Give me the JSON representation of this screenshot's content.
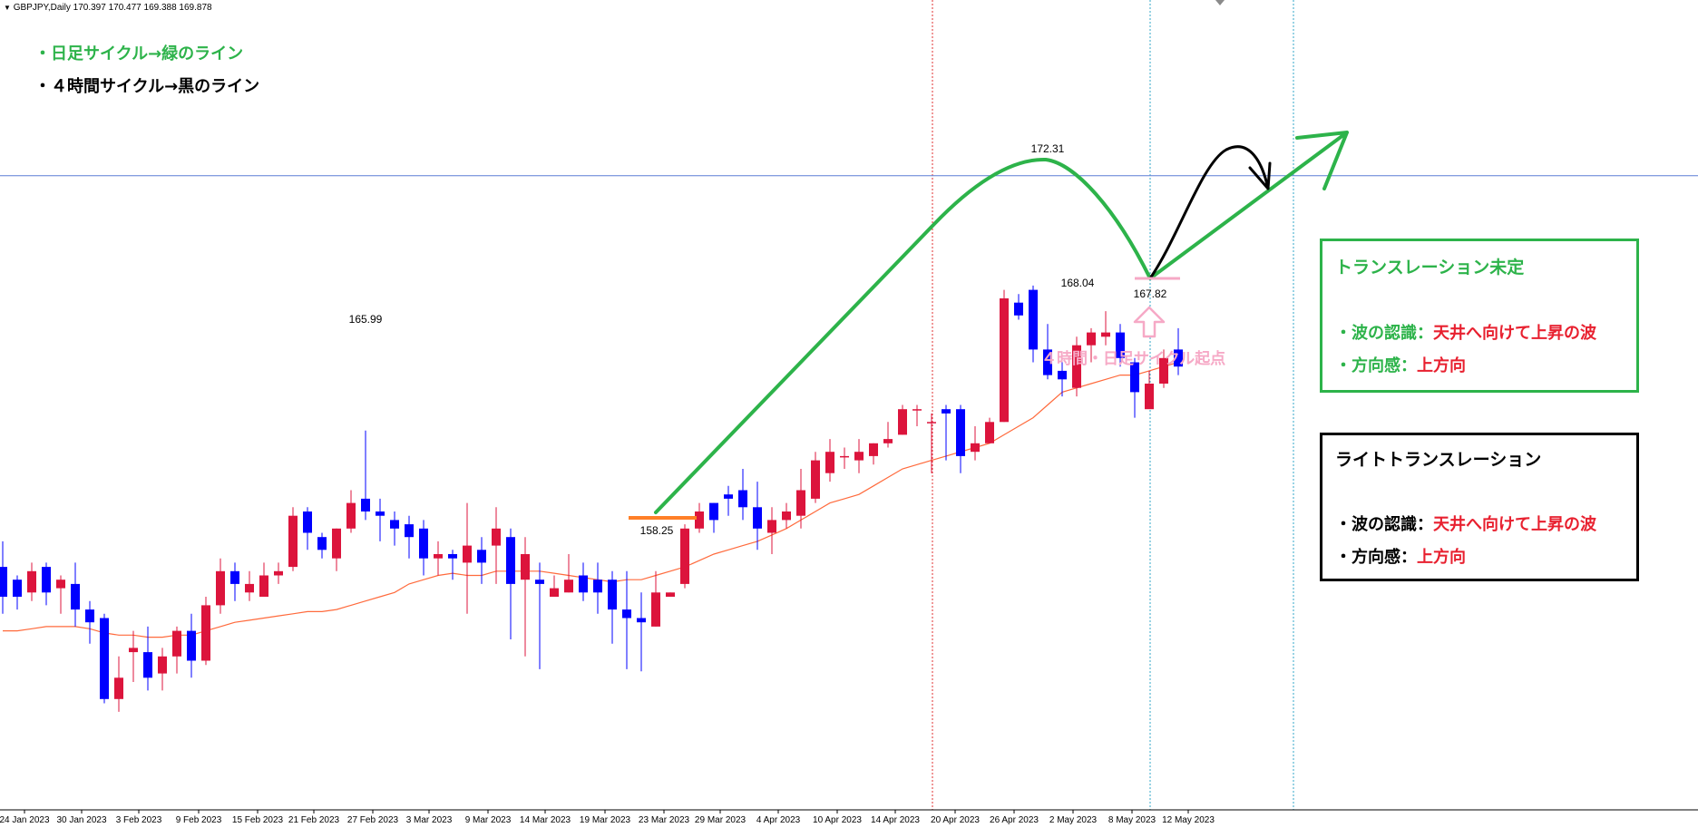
{
  "header": {
    "symbol_info": "GBPJPY,Daily  170.397 170.477 169.388 169.878"
  },
  "notes": {
    "line1": "・日足サイクル→緑のライン",
    "line2": "・４時間サイクル→黒のライン"
  },
  "green_box": {
    "title": "トランスレーション未定",
    "line1_label": "・波の認識：",
    "line1_value": "天井へ向けて上昇の波",
    "line2_label": "・方向感：",
    "line2_value": "上方向"
  },
  "black_box": {
    "title": "ライトトランスレーション",
    "line1_label": "・波の認識：",
    "line1_value": "天井へ向けて上昇の波",
    "line2_label": "・方向感：",
    "line2_value": "上方向"
  },
  "cycle_origin_label": "４時間・日足サイクル起点",
  "colors": {
    "bull": "#dc143c",
    "bear": "#0000ff",
    "ma": "#ff6a3c",
    "green": "#2db34a",
    "black": "#000000",
    "pink": "#f6a9c6",
    "orange": "#ff7f27",
    "hline": "#5b7fd6",
    "vred": "#e03030",
    "vblue": "#33a7c8"
  },
  "chart_data": {
    "type": "candlestick",
    "symbol": "GBPJPY",
    "timeframe": "Daily",
    "ylim": [
      155.0,
      174.0
    ],
    "x_tick_labels": [
      "24 Jan 2023",
      "30 Jan 2023",
      "3 Feb 2023",
      "9 Feb 2023",
      "15 Feb 2023",
      "21 Feb 2023",
      "27 Feb 2023",
      "3 Mar 2023",
      "9 Mar 2023",
      "14 Mar 2023",
      "19 Mar 2023",
      "23 Mar 2023",
      "29 Mar 2023",
      "4 Apr 2023",
      "10 Apr 2023",
      "14 Apr 2023",
      "20 Apr 2023",
      "26 Apr 2023",
      "2 May 2023",
      "8 May 2023",
      "12 May 2023"
    ],
    "ohlc": [
      [
        160.7,
        161.3,
        159.6,
        160.0
      ],
      [
        160.4,
        160.5,
        159.7,
        160.0
      ],
      [
        160.1,
        160.8,
        159.9,
        160.6
      ],
      [
        160.7,
        160.8,
        159.8,
        160.1
      ],
      [
        160.2,
        160.5,
        159.6,
        160.4
      ],
      [
        160.3,
        160.8,
        159.3,
        159.7
      ],
      [
        159.7,
        159.9,
        158.9,
        159.4
      ],
      [
        159.5,
        159.6,
        157.5,
        157.6
      ],
      [
        157.6,
        158.6,
        157.3,
        158.1
      ],
      [
        158.7,
        159.2,
        158.0,
        158.8
      ],
      [
        158.7,
        159.3,
        157.8,
        158.1
      ],
      [
        158.2,
        158.8,
        157.8,
        158.6
      ],
      [
        158.6,
        159.3,
        158.2,
        159.2
      ],
      [
        159.2,
        159.6,
        158.1,
        158.5
      ],
      [
        158.5,
        160.0,
        158.4,
        159.8
      ],
      [
        159.8,
        160.9,
        159.6,
        160.6
      ],
      [
        160.6,
        160.8,
        159.9,
        160.3
      ],
      [
        160.1,
        160.6,
        159.9,
        160.3
      ],
      [
        160.0,
        160.8,
        160.0,
        160.5
      ],
      [
        160.5,
        160.8,
        160.3,
        160.6
      ],
      [
        160.7,
        162.1,
        160.6,
        161.9
      ],
      [
        162.0,
        162.1,
        161.1,
        161.5
      ],
      [
        161.4,
        161.5,
        160.9,
        161.1
      ],
      [
        160.9,
        161.6,
        160.6,
        161.6
      ],
      [
        161.6,
        162.5,
        161.5,
        162.2
      ],
      [
        162.3,
        163.9,
        161.8,
        162.0
      ],
      [
        162.0,
        162.3,
        161.3,
        161.9
      ],
      [
        161.8,
        162.0,
        161.2,
        161.6
      ],
      [
        161.7,
        161.9,
        160.9,
        161.4
      ],
      [
        161.6,
        161.8,
        160.5,
        160.9
      ],
      [
        160.9,
        161.3,
        160.5,
        161.0
      ],
      [
        161.0,
        161.1,
        160.4,
        160.9
      ],
      [
        160.8,
        162.2,
        159.6,
        161.2
      ],
      [
        161.1,
        161.4,
        160.3,
        160.8
      ],
      [
        161.2,
        162.1,
        160.3,
        161.6
      ],
      [
        161.4,
        161.6,
        159.0,
        160.3
      ],
      [
        160.4,
        161.4,
        158.6,
        161.0
      ],
      [
        160.4,
        160.8,
        158.3,
        160.3
      ],
      [
        160.0,
        160.5,
        160.1,
        160.2
      ],
      [
        160.1,
        161.0,
        160.1,
        160.4
      ],
      [
        160.5,
        160.8,
        159.9,
        160.1
      ],
      [
        160.4,
        160.8,
        159.6,
        160.1
      ],
      [
        160.4,
        160.6,
        158.9,
        159.7
      ],
      [
        159.7,
        160.6,
        158.3,
        159.5
      ],
      [
        159.5,
        160.1,
        158.25,
        159.4
      ],
      [
        159.3,
        160.6,
        159.3,
        160.1
      ],
      [
        160.0,
        160.1,
        160.0,
        160.1
      ],
      [
        160.3,
        161.7,
        160.2,
        161.6
      ],
      [
        161.6,
        162.2,
        161.5,
        162.0
      ],
      [
        162.2,
        162.2,
        161.5,
        161.8
      ],
      [
        162.4,
        162.6,
        161.9,
        162.3
      ],
      [
        162.5,
        163.0,
        161.8,
        162.1
      ],
      [
        162.1,
        162.7,
        161.1,
        161.6
      ],
      [
        161.5,
        162.1,
        161.0,
        161.8
      ],
      [
        161.8,
        162.2,
        161.6,
        162.0
      ],
      [
        161.9,
        163.0,
        161.6,
        162.5
      ],
      [
        162.3,
        163.4,
        162.2,
        163.2
      ],
      [
        162.9,
        163.7,
        162.7,
        163.4
      ],
      [
        163.3,
        163.5,
        163.0,
        163.3
      ],
      [
        163.2,
        163.7,
        162.9,
        163.4
      ],
      [
        163.3,
        163.6,
        163.1,
        163.6
      ],
      [
        163.6,
        164.1,
        163.5,
        163.7
      ],
      [
        163.8,
        164.5,
        163.8,
        164.4
      ],
      [
        164.4,
        164.5,
        164.0,
        164.4
      ],
      [
        164.1,
        164.3,
        162.9,
        164.1
      ],
      [
        164.4,
        164.5,
        163.2,
        164.3
      ],
      [
        164.4,
        164.5,
        162.9,
        163.3
      ],
      [
        163.4,
        164.0,
        163.2,
        163.6
      ],
      [
        163.6,
        164.2,
        163.6,
        164.1
      ],
      [
        164.1,
        167.2,
        164.1,
        167.0
      ],
      [
        166.9,
        167.1,
        166.5,
        166.6
      ],
      [
        167.2,
        167.3,
        165.5,
        165.8
      ],
      [
        165.8,
        166.4,
        165.1,
        165.2
      ],
      [
        165.3,
        165.7,
        164.7,
        165.1
      ],
      [
        164.9,
        166.1,
        164.7,
        165.9
      ],
      [
        165.9,
        166.3,
        165.5,
        166.2
      ],
      [
        166.1,
        166.7,
        165.9,
        166.2
      ],
      [
        166.2,
        166.4,
        165.4,
        165.6
      ],
      [
        165.5,
        165.6,
        164.2,
        164.8
      ],
      [
        164.4,
        165.3,
        164.5,
        165.0
      ],
      [
        165.0,
        165.8,
        164.9,
        165.6
      ],
      [
        165.8,
        166.3,
        165.2,
        165.4
      ]
    ],
    "moving_average": [
      159.2,
      159.2,
      159.25,
      159.3,
      159.3,
      159.3,
      159.25,
      159.15,
      159.1,
      159.1,
      159.05,
      159.05,
      159.1,
      159.1,
      159.2,
      159.3,
      159.4,
      159.45,
      159.5,
      159.55,
      159.6,
      159.65,
      159.65,
      159.7,
      159.8,
      159.9,
      160.0,
      160.1,
      160.3,
      160.4,
      160.5,
      160.55,
      160.5,
      160.5,
      160.6,
      160.6,
      160.6,
      160.6,
      160.55,
      160.5,
      160.45,
      160.4,
      160.35,
      160.4,
      160.4,
      160.5,
      160.6,
      160.7,
      160.85,
      161.0,
      161.1,
      161.2,
      161.3,
      161.45,
      161.6,
      161.8,
      162.0,
      162.2,
      162.3,
      162.4,
      162.6,
      162.8,
      163.0,
      163.1,
      163.2,
      163.3,
      163.4,
      163.5,
      163.6,
      163.8,
      164.0,
      164.2,
      164.5,
      164.8,
      164.9,
      165.0,
      165.1,
      165.2,
      165.2,
      165.3,
      165.4,
      165.5
    ],
    "annotations": {
      "high_feb": "165.99",
      "low_mar": "158.25",
      "high_may": "172.31",
      "low_may1": "168.04",
      "low_may2": "167.82"
    },
    "current_price": 169.878
  }
}
